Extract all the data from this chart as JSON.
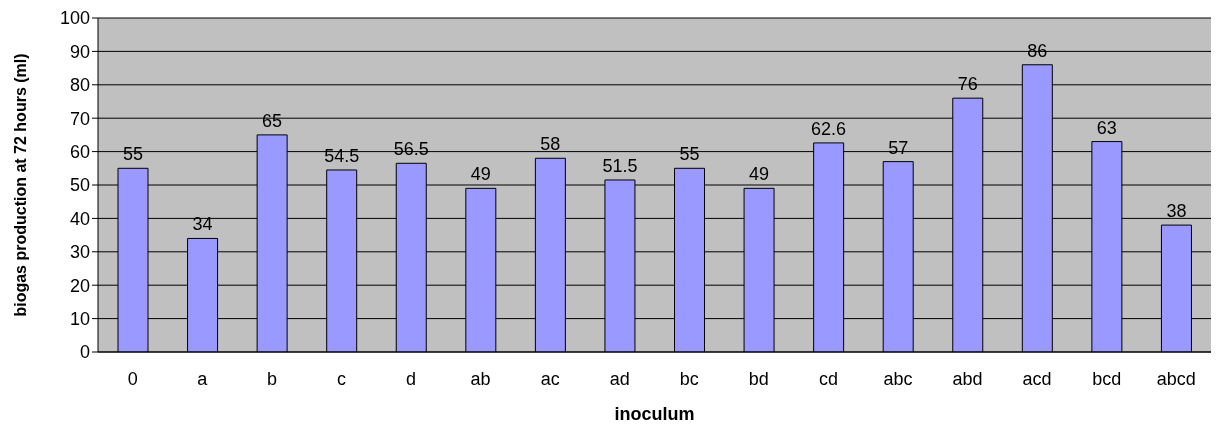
{
  "chart_data": {
    "type": "bar",
    "xlabel": "inoculum",
    "ylabel": "biogas production at 72 hours (ml)",
    "categories": [
      "0",
      "a",
      "b",
      "c",
      "d",
      "ab",
      "ac",
      "ad",
      "bc",
      "bd",
      "cd",
      "abc",
      "abd",
      "acd",
      "bcd",
      "abcd"
    ],
    "values": [
      55,
      34,
      65,
      54.5,
      56.5,
      49,
      58,
      51.5,
      55,
      49,
      62.6,
      57,
      76,
      86,
      63,
      38
    ],
    "color": "#9999ff",
    "ylim": [
      0,
      100
    ],
    "yticks": [
      0,
      10,
      20,
      30,
      40,
      50,
      60,
      70,
      80,
      90,
      100
    ],
    "grid": "y",
    "data_labels": true
  }
}
